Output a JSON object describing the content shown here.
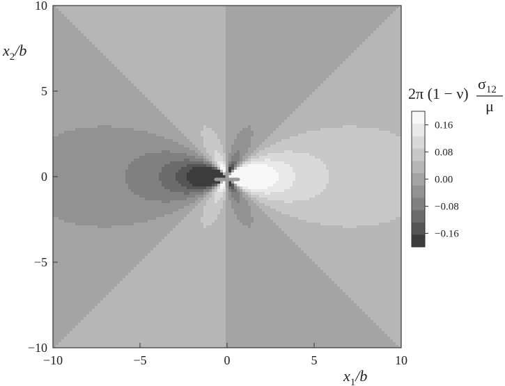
{
  "chart_data": {
    "type": "heatmap",
    "title": "",
    "description_field": "Filled contour plot of a single-valued field over a square domain",
    "x": {
      "label_main": "x",
      "label_sub": "1",
      "label_rest": "/b",
      "range": [
        -10,
        10
      ],
      "ticks": [
        -10,
        -5,
        0,
        5,
        10
      ],
      "tick_labels": [
        "−10",
        "−5",
        "0",
        "5",
        "10"
      ]
    },
    "y": {
      "label_main": "x",
      "label_sub": "2",
      "label_rest": "/b",
      "range": [
        -10,
        10
      ],
      "ticks": [
        -10,
        -5,
        0,
        5,
        10
      ],
      "tick_labels": [
        "−10",
        "−5",
        "0",
        "5",
        "10"
      ]
    },
    "colorbar": {
      "title_prefix": "2π (1 − ν)",
      "title_num_main": "σ",
      "title_num_sub": "12",
      "title_den": "μ",
      "levels": [
        -0.24,
        -0.2,
        -0.16,
        -0.12,
        -0.08,
        -0.04,
        0.0,
        0.04,
        0.08,
        0.12,
        0.16,
        0.2,
        0.24
      ],
      "tick_values": [
        -0.16,
        -0.08,
        0.0,
        0.08,
        0.16
      ],
      "tick_labels": [
        "−0.16",
        "−0.08",
        "0.00",
        "0.08",
        "0.16"
      ],
      "colors": [
        "#3c3c3c",
        "#555555",
        "#6c6c6c",
        "#808080",
        "#929292",
        "#a4a4a4",
        "#b6b6b6",
        "#c8c8c8",
        "#d9d9d9",
        "#e9e9e9",
        "#f8f8f8"
      ]
    },
    "field": {
      "formula": "x*(x^2 - y^2)/(x^2 + y^2)^2",
      "scale": 0.47,
      "overlay_marker": "cross at origin"
    }
  }
}
